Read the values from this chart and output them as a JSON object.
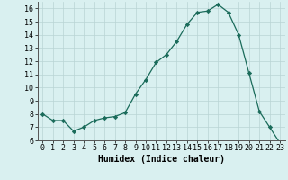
{
  "x": [
    0,
    1,
    2,
    3,
    4,
    5,
    6,
    7,
    8,
    9,
    10,
    11,
    12,
    13,
    14,
    15,
    16,
    17,
    18,
    19,
    20,
    21,
    22,
    23
  ],
  "y": [
    8.0,
    7.5,
    7.5,
    6.7,
    7.0,
    7.5,
    7.7,
    7.8,
    8.1,
    9.5,
    10.6,
    11.9,
    12.5,
    13.5,
    14.8,
    15.7,
    15.8,
    16.3,
    15.7,
    14.0,
    11.1,
    8.2,
    7.0,
    5.8
  ],
  "line_color": "#1a6b5a",
  "marker": "D",
  "marker_size": 2.2,
  "bg_color": "#d9f0f0",
  "grid_color": "#b8d4d4",
  "xlabel": "Humidex (Indice chaleur)",
  "xlim": [
    -0.5,
    23.5
  ],
  "ylim": [
    6,
    16.5
  ],
  "xtick_labels": [
    "0",
    "1",
    "2",
    "3",
    "4",
    "5",
    "6",
    "7",
    "8",
    "9",
    "10",
    "11",
    "12",
    "13",
    "14",
    "15",
    "16",
    "17",
    "18",
    "19",
    "20",
    "21",
    "22",
    "23"
  ],
  "ytick_vals": [
    6,
    7,
    8,
    9,
    10,
    11,
    12,
    13,
    14,
    15,
    16
  ],
  "tick_font_size": 6.0,
  "xlabel_font_size": 7.0
}
